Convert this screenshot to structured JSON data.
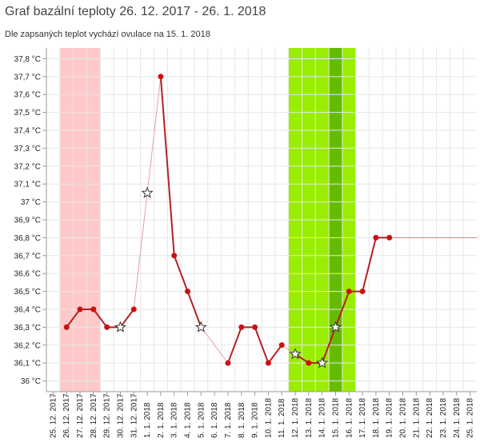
{
  "header": {
    "title": "Graf bazální teploty 26. 12. 2017 - 26. 1. 2018",
    "subtitle": "Dle zapsaných teplot vychází ovulace na 15. 1. 2018"
  },
  "chart_data": {
    "type": "line",
    "x_categories": [
      "25. 12. 2017",
      "26. 12. 2017",
      "27. 12. 2017",
      "28. 12. 2017",
      "29. 12. 2017",
      "30. 12. 2017",
      "31. 12. 2017",
      "1. 1. 2018",
      "2. 1. 2018",
      "3. 1. 2018",
      "4. 1. 2018",
      "5. 1. 2018",
      "6. 1. 2018",
      "7. 1. 2018",
      "8. 1. 2018",
      "9. 1. 2018",
      "10. 1. 2018",
      "11. 1. 2018",
      "12. 1. 2018",
      "13. 1. 2018",
      "14. 1. 2018",
      "15. 1. 2018",
      "16. 1. 2018",
      "17. 1. 2018",
      "18. 1. 2018",
      "19. 1. 2018",
      "20. 1. 2018",
      "21. 1. 2018",
      "22. 1. 2018",
      "23. 1. 2018",
      "24. 1. 2018",
      "25. 1. 2018"
    ],
    "y_ticks": [
      "36 °C",
      "36,1 °C",
      "36,2 °C",
      "36,3 °C",
      "36,4 °C",
      "36,5 °C",
      "36,6 °C",
      "36,7 °C",
      "36,8 °C",
      "36,9 °C",
      "37 °C",
      "37,1 °C",
      "37,2 °C",
      "37,3 °C",
      "37,4 °C",
      "37,5 °C",
      "37,6 °C",
      "37,7 °C",
      "37,8 °C"
    ],
    "ylim": [
      35.94,
      37.86
    ],
    "grid": true,
    "points": [
      {
        "x": "26. 12. 2017",
        "y": 36.3,
        "marker": "dot"
      },
      {
        "x": "27. 12. 2017",
        "y": 36.4,
        "marker": "dot"
      },
      {
        "x": "28. 12. 2017",
        "y": 36.4,
        "marker": "dot"
      },
      {
        "x": "29. 12. 2017",
        "y": 36.3,
        "marker": "dot"
      },
      {
        "x": "30. 12. 2017",
        "y": 36.3,
        "marker": "star"
      },
      {
        "x": "31. 12. 2017",
        "y": 36.4,
        "marker": "dot"
      },
      {
        "x": "1. 1. 2018",
        "y": 37.05,
        "marker": "star"
      },
      {
        "x": "2. 1. 2018",
        "y": 37.7,
        "marker": "dot"
      },
      {
        "x": "3. 1. 2018",
        "y": 36.7,
        "marker": "dot"
      },
      {
        "x": "4. 1. 2018",
        "y": 36.5,
        "marker": "dot"
      },
      {
        "x": "5. 1. 2018",
        "y": 36.3,
        "marker": "star"
      },
      {
        "x": "7. 1. 2018",
        "y": 36.1,
        "marker": "dot"
      },
      {
        "x": "8. 1. 2018",
        "y": 36.3,
        "marker": "dot"
      },
      {
        "x": "9. 1. 2018",
        "y": 36.3,
        "marker": "dot"
      },
      {
        "x": "10. 1. 2018",
        "y": 36.1,
        "marker": "dot"
      },
      {
        "x": "11. 1. 2018",
        "y": 36.2,
        "marker": "dot"
      },
      {
        "x": "12. 1. 2018",
        "y": 36.15,
        "marker": "star"
      },
      {
        "x": "13. 1. 2018",
        "y": 36.1,
        "marker": "dot"
      },
      {
        "x": "14. 1. 2018",
        "y": 36.1,
        "marker": "star"
      },
      {
        "x": "15. 1. 2018",
        "y": 36.3,
        "marker": "star"
      },
      {
        "x": "16. 1. 2018",
        "y": 36.5,
        "marker": "dot"
      },
      {
        "x": "17. 1. 2018",
        "y": 36.5,
        "marker": "dot"
      },
      {
        "x": "18. 1. 2018",
        "y": 36.8,
        "marker": "dot"
      },
      {
        "x": "19. 1. 2018",
        "y": 36.8,
        "marker": "dot"
      }
    ],
    "dashed_segments": [
      {
        "from": "31. 12. 2017",
        "to": "1. 1. 2018"
      },
      {
        "from": "1. 1. 2018",
        "to": "2. 1. 2018"
      },
      {
        "from": "5. 1. 2018",
        "to": "7. 1. 2018"
      },
      {
        "from": "11. 1. 2018",
        "to": "12. 1. 2018"
      }
    ],
    "projection": {
      "from": "19. 1. 2018",
      "to": "25. 1. 2018",
      "y": 36.8
    },
    "bands": [
      {
        "from": "26. 12. 2017",
        "to": "28. 12. 2017",
        "color": "#ffc9c9"
      },
      {
        "from": "12. 1. 2018",
        "to": "16. 1. 2018",
        "color": "#99ee00"
      },
      {
        "from": "15. 1. 2018",
        "to": "15. 1. 2018",
        "color": "#66bb00"
      }
    ],
    "colors": {
      "line": "#b22222",
      "point": "#cc1111",
      "grid": "#e6e6e6",
      "axis": "#999999",
      "star_fill": "#ffffff",
      "star_stroke": "#333333"
    }
  }
}
